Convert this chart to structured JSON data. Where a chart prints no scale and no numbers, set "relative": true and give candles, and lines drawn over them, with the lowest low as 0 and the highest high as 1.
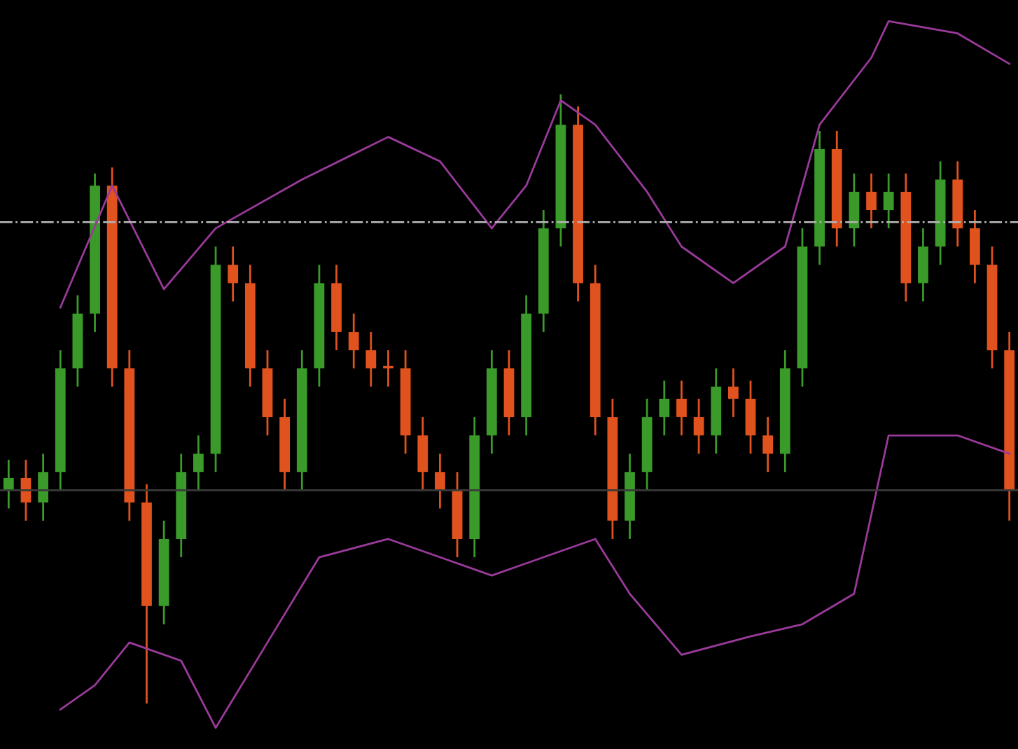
{
  "chart_data": {
    "type": "candlestick",
    "relative": true,
    "categories": [
      null,
      null,
      null,
      null,
      null,
      null,
      null,
      null,
      null,
      null,
      null,
      null,
      null,
      null,
      null,
      null,
      null,
      null,
      null,
      null,
      null,
      null,
      null,
      null,
      null,
      null,
      null,
      null,
      null,
      null,
      null,
      null,
      null,
      null,
      null,
      null,
      null,
      null,
      null,
      null,
      null,
      null,
      null,
      null,
      null,
      null,
      null,
      null,
      null,
      null,
      null,
      null,
      null,
      null,
      null,
      null,
      null,
      null,
      null
    ],
    "series": [
      {
        "ohlc": [
          [
            0.35,
            0.4,
            0.32,
            0.37
          ],
          [
            0.37,
            0.4,
            0.3,
            0.33
          ],
          [
            0.33,
            0.41,
            0.3,
            0.38
          ],
          [
            0.38,
            0.58,
            0.35,
            0.55
          ],
          [
            0.55,
            0.67,
            0.52,
            0.64
          ],
          [
            0.64,
            0.87,
            0.61,
            0.85
          ],
          [
            0.85,
            0.88,
            0.52,
            0.55
          ],
          [
            0.55,
            0.58,
            0.3,
            0.33
          ],
          [
            0.33,
            0.36,
            0,
            0.16
          ],
          [
            0.16,
            0.3,
            0.13,
            0.27
          ],
          [
            0.27,
            0.41,
            0.24,
            0.38
          ],
          [
            0.38,
            0.44,
            0.35,
            0.41
          ],
          [
            0.41,
            0.75,
            0.38,
            0.72
          ],
          [
            0.72,
            0.75,
            0.66,
            0.69
          ],
          [
            0.69,
            0.72,
            0.52,
            0.55
          ],
          [
            0.55,
            0.58,
            0.44,
            0.47
          ],
          [
            0.47,
            0.5,
            0.35,
            0.38
          ],
          [
            0.38,
            0.58,
            0.35,
            0.55
          ],
          [
            0.55,
            0.72,
            0.52,
            0.69
          ],
          [
            0.69,
            0.72,
            0.58,
            0.61
          ],
          [
            0.61,
            0.64,
            0.55,
            0.58
          ],
          [
            0.58,
            0.61,
            0.52,
            0.55
          ],
          [
            0.55,
            0.58,
            0.52,
            0.55
          ],
          [
            0.55,
            0.58,
            0.41,
            0.44
          ],
          [
            0.44,
            0.47,
            0.35,
            0.38
          ],
          [
            0.38,
            0.41,
            0.32,
            0.35
          ],
          [
            0.35,
            0.38,
            0.24,
            0.27
          ],
          [
            0.27,
            0.47,
            0.24,
            0.44
          ],
          [
            0.44,
            0.58,
            0.41,
            0.55
          ],
          [
            0.55,
            0.58,
            0.44,
            0.47
          ],
          [
            0.47,
            0.67,
            0.44,
            0.64
          ],
          [
            0.64,
            0.81,
            0.61,
            0.78
          ],
          [
            0.78,
            1,
            0.75,
            0.95
          ],
          [
            0.95,
            0.98,
            0.66,
            0.69
          ],
          [
            0.69,
            0.72,
            0.44,
            0.47
          ],
          [
            0.47,
            0.5,
            0.27,
            0.3
          ],
          [
            0.3,
            0.41,
            0.27,
            0.38
          ],
          [
            0.38,
            0.5,
            0.35,
            0.47
          ],
          [
            0.47,
            0.53,
            0.44,
            0.5
          ],
          [
            0.5,
            0.53,
            0.44,
            0.47
          ],
          [
            0.47,
            0.5,
            0.41,
            0.44
          ],
          [
            0.44,
            0.55,
            0.41,
            0.52
          ],
          [
            0.52,
            0.55,
            0.47,
            0.5
          ],
          [
            0.5,
            0.53,
            0.41,
            0.44
          ],
          [
            0.44,
            0.47,
            0.38,
            0.41
          ],
          [
            0.41,
            0.58,
            0.38,
            0.55
          ],
          [
            0.55,
            0.78,
            0.52,
            0.75
          ],
          [
            0.75,
            0.94,
            0.72,
            0.91
          ],
          [
            0.91,
            0.94,
            0.75,
            0.78
          ],
          [
            0.78,
            0.87,
            0.75,
            0.84
          ],
          [
            0.84,
            0.87,
            0.78,
            0.81
          ],
          [
            0.81,
            0.87,
            0.78,
            0.84
          ],
          [
            0.84,
            0.87,
            0.66,
            0.69
          ],
          [
            0.69,
            0.78,
            0.66,
            0.75
          ],
          [
            0.75,
            0.89,
            0.72,
            0.86
          ],
          [
            0.86,
            0.89,
            0.75,
            0.78
          ],
          [
            0.78,
            0.81,
            0.69,
            0.72
          ],
          [
            0.72,
            0.75,
            0.55,
            0.58
          ],
          [
            0.58,
            0.61,
            0.3,
            0.35
          ]
        ],
        "colors": [
          "#3a9a2a",
          "#e0521e",
          "#3a9a2a",
          "#3a9a2a",
          "#3a9a2a",
          "#3a9a2a",
          "#e0521e",
          "#e0521e",
          "#e0521e",
          "#3a9a2a",
          "#3a9a2a",
          "#3a9a2a",
          "#3a9a2a",
          "#e0521e",
          "#e0521e",
          "#e0521e",
          "#e0521e",
          "#3a9a2a",
          "#3a9a2a",
          "#e0521e",
          "#e0521e",
          "#e0521e",
          "#e0521e",
          "#e0521e",
          "#e0521e",
          "#e0521e",
          "#e0521e",
          "#3a9a2a",
          "#3a9a2a",
          "#e0521e",
          "#3a9a2a",
          "#3a9a2a",
          "#3a9a2a",
          "#e0521e",
          "#e0521e",
          "#e0521e",
          "#3a9a2a",
          "#3a9a2a",
          "#3a9a2a",
          "#e0521e",
          "#e0521e",
          "#3a9a2a",
          "#e0521e",
          "#e0521e",
          "#e0521e",
          "#3a9a2a",
          "#3a9a2a",
          "#3a9a2a",
          "#e0521e",
          "#3a9a2a",
          "#e0521e",
          "#3a9a2a",
          "#e0521e",
          "#3a9a2a",
          "#3a9a2a",
          "#e0521e",
          "#e0521e",
          "#e0521e",
          "#e0521e"
        ]
      },
      {
        "type": "line",
        "color": "#9a3a9a",
        "values": [
          null,
          null,
          null,
          0.65,
          null,
          null,
          0.85,
          null,
          null,
          0.68,
          null,
          null,
          0.78,
          null,
          null,
          null,
          null,
          0.86,
          null,
          null,
          null,
          null,
          0.93,
          null,
          null,
          0.89,
          null,
          null,
          0.78,
          null,
          0.85,
          null,
          0.99,
          null,
          0.95,
          null,
          null,
          0.84,
          null,
          0.75,
          null,
          null,
          0.69,
          null,
          null,
          0.75,
          null,
          0.95,
          null,
          null,
          1.06,
          1.12,
          null,
          null,
          null,
          1.1,
          null,
          null,
          1.05
        ]
      },
      {
        "type": "line",
        "color": "#9a3a9a",
        "values": [
          null,
          null,
          null,
          -0.01,
          null,
          0.03,
          null,
          0.1,
          null,
          null,
          0.07,
          null,
          -0.04,
          null,
          null,
          0.1,
          null,
          null,
          0.24,
          null,
          null,
          null,
          0.27,
          null,
          null,
          0.24,
          null,
          null,
          0.21,
          null,
          null,
          0.24,
          null,
          null,
          0.27,
          null,
          0.18,
          null,
          null,
          0.08,
          null,
          null,
          null,
          0.11,
          null,
          null,
          0.13,
          null,
          null,
          0.18,
          null,
          0.44,
          null,
          null,
          null,
          0.44,
          null,
          null,
          0.41
        ]
      }
    ],
    "ref_lines": [
      {
        "axis": "y",
        "value": 0.79,
        "color": "#b0b0b0",
        "line_style": "dashed"
      },
      {
        "axis": "y",
        "value": 0.35,
        "color": "#3a3a3a",
        "line_style": "solid"
      }
    ],
    "legend": false
  }
}
